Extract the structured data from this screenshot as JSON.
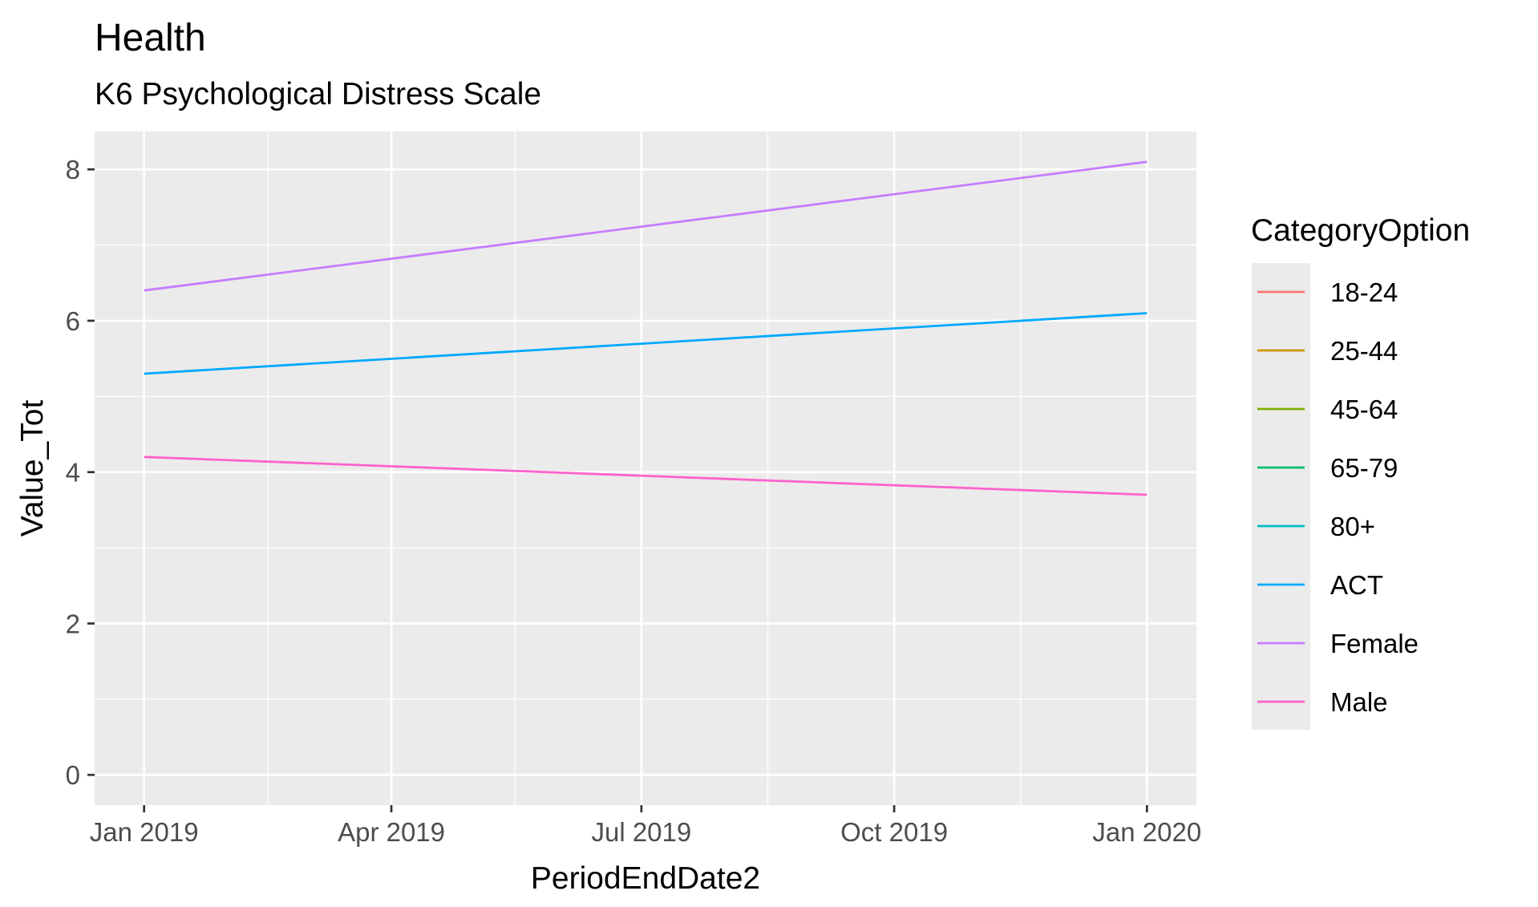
{
  "chart_data": {
    "type": "line",
    "title": "Health",
    "subtitle": "K6 Psychological Distress Scale",
    "xlabel": "PeriodEndDate2",
    "ylabel": "Value_Tot",
    "x_ticks": [
      "Jan 2019",
      "Apr 2019",
      "Jul 2019",
      "Oct 2019",
      "Jan 2020"
    ],
    "x_tick_dates": [
      "2019-01-01",
      "2019-04-01",
      "2019-07-01",
      "2019-10-01",
      "2020-01-01"
    ],
    "x_minor_dates": [
      "2019-02-15",
      "2019-05-16",
      "2019-08-16",
      "2019-11-16"
    ],
    "xlim": [
      "2018-12-14",
      "2020-01-19"
    ],
    "y_ticks": [
      0,
      2,
      4,
      6,
      8
    ],
    "y_minor": [
      1,
      3,
      5,
      7
    ],
    "ylim": [
      -0.4,
      8.5
    ],
    "grid": true,
    "legend": {
      "title": "CategoryOption",
      "placement": "right",
      "entries": [
        {
          "name": "18-24",
          "color": "#F8766D"
        },
        {
          "name": "25-44",
          "color": "#CD9600"
        },
        {
          "name": "45-64",
          "color": "#7CAE00"
        },
        {
          "name": "65-79",
          "color": "#00BE67"
        },
        {
          "name": "80+",
          "color": "#00BFC4"
        },
        {
          "name": "ACT",
          "color": "#00A9FF"
        },
        {
          "name": "Female",
          "color": "#C77CFF"
        },
        {
          "name": "Male",
          "color": "#FF61CC"
        }
      ]
    },
    "series": [
      {
        "name": "Female",
        "color": "#C77CFF",
        "x": [
          "2019-01-01",
          "2020-01-01"
        ],
        "values": [
          6.4,
          8.1
        ]
      },
      {
        "name": "ACT",
        "color": "#00A9FF",
        "x": [
          "2019-01-01",
          "2020-01-01"
        ],
        "values": [
          5.3,
          6.1
        ]
      },
      {
        "name": "Male",
        "color": "#FF61CC",
        "x": [
          "2019-01-01",
          "2020-01-01"
        ],
        "values": [
          4.2,
          3.7
        ]
      }
    ]
  }
}
